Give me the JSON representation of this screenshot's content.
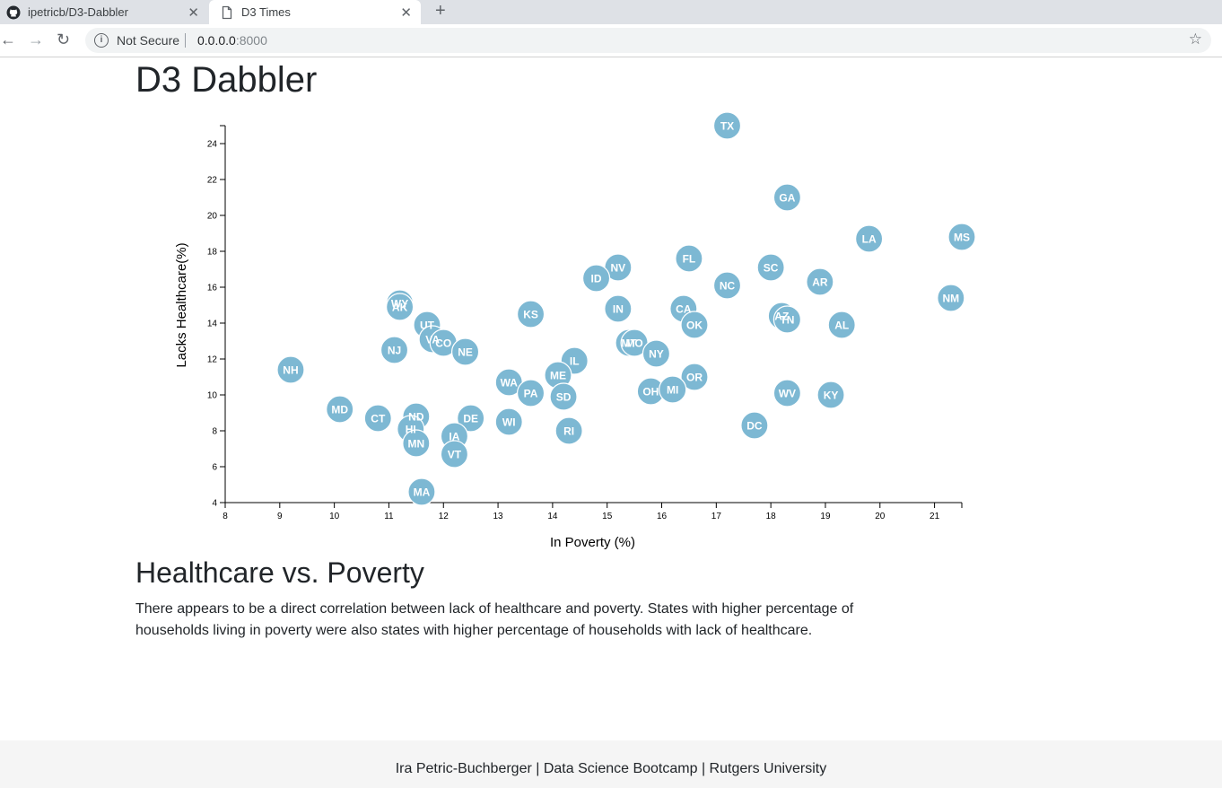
{
  "browser": {
    "tabs": [
      {
        "title": "ipetricb/D3-Dabbler",
        "icon": "github-icon"
      },
      {
        "title": "D3 Times",
        "icon": "page-icon"
      }
    ],
    "security_label": "Not Secure",
    "url_host": "0.0.0.0",
    "url_port": ":8000"
  },
  "page": {
    "title": "D3 Dabbler",
    "section_title": "Healthcare vs. Poverty",
    "description": "There appears to be a direct correlation between lack of healthcare and poverty. States with higher percentage of households living in poverty were also states with higher percentage of households with lack of healthcare.",
    "footer": "Ira Petric-Buchberger | Data Science Bootcamp | Rutgers University"
  },
  "colors": {
    "marker": "#7db8d3",
    "marker_stroke": "#ffffff"
  },
  "chart_data": {
    "type": "scatter",
    "xlabel": "In Poverty (%)",
    "ylabel": "Lacks Healthcare(%)",
    "xlim": [
      8,
      21.5
    ],
    "ylim": [
      4,
      25
    ],
    "xticks": [
      8,
      9,
      10,
      11,
      12,
      13,
      14,
      15,
      16,
      17,
      18,
      19,
      20,
      21
    ],
    "yticks": [
      4,
      6,
      8,
      10,
      12,
      14,
      16,
      18,
      20,
      22,
      24
    ],
    "grid": false,
    "points": [
      {
        "label": "TX",
        "x": 17.2,
        "y": 25.0
      },
      {
        "label": "GA",
        "x": 18.3,
        "y": 21.0
      },
      {
        "label": "LA",
        "x": 19.8,
        "y": 18.7
      },
      {
        "label": "MS",
        "x": 21.5,
        "y": 18.8
      },
      {
        "label": "FL",
        "x": 16.5,
        "y": 17.6
      },
      {
        "label": "SC",
        "x": 18.0,
        "y": 17.1
      },
      {
        "label": "NV",
        "x": 15.2,
        "y": 17.1
      },
      {
        "label": "ID",
        "x": 14.8,
        "y": 16.5
      },
      {
        "label": "AR",
        "x": 18.9,
        "y": 16.3
      },
      {
        "label": "NC",
        "x": 17.2,
        "y": 16.1
      },
      {
        "label": "NM",
        "x": 21.3,
        "y": 15.4
      },
      {
        "label": "WY",
        "x": 11.2,
        "y": 15.1
      },
      {
        "label": "AK",
        "x": 11.2,
        "y": 14.9
      },
      {
        "label": "IN",
        "x": 15.2,
        "y": 14.8
      },
      {
        "label": "CA",
        "x": 16.4,
        "y": 14.8
      },
      {
        "label": "KS",
        "x": 13.6,
        "y": 14.5
      },
      {
        "label": "AZ",
        "x": 18.2,
        "y": 14.4
      },
      {
        "label": "TN",
        "x": 18.3,
        "y": 14.2
      },
      {
        "label": "UT",
        "x": 11.7,
        "y": 13.9
      },
      {
        "label": "OK",
        "x": 16.6,
        "y": 13.9
      },
      {
        "label": "AL",
        "x": 19.3,
        "y": 13.9
      },
      {
        "label": "VA",
        "x": 11.8,
        "y": 13.1
      },
      {
        "label": "CO",
        "x": 12.0,
        "y": 12.9
      },
      {
        "label": "MT",
        "x": 15.4,
        "y": 12.9
      },
      {
        "label": "MO",
        "x": 15.5,
        "y": 12.9
      },
      {
        "label": "NJ",
        "x": 11.1,
        "y": 12.5
      },
      {
        "label": "NE",
        "x": 12.4,
        "y": 12.4
      },
      {
        "label": "NY",
        "x": 15.9,
        "y": 12.3
      },
      {
        "label": "IL",
        "x": 14.4,
        "y": 11.9
      },
      {
        "label": "NH",
        "x": 9.2,
        "y": 11.4
      },
      {
        "label": "ME",
        "x": 14.1,
        "y": 11.1
      },
      {
        "label": "WA",
        "x": 13.2,
        "y": 10.7
      },
      {
        "label": "OR",
        "x": 16.6,
        "y": 11.0
      },
      {
        "label": "PA",
        "x": 13.6,
        "y": 10.1
      },
      {
        "label": "WV",
        "x": 18.3,
        "y": 10.1
      },
      {
        "label": "KY",
        "x": 19.1,
        "y": 10.0
      },
      {
        "label": "SD",
        "x": 14.2,
        "y": 9.9
      },
      {
        "label": "OH",
        "x": 15.8,
        "y": 10.2
      },
      {
        "label": "MI",
        "x": 16.2,
        "y": 10.3
      },
      {
        "label": "MD",
        "x": 10.1,
        "y": 9.2
      },
      {
        "label": "CT",
        "x": 10.8,
        "y": 8.7
      },
      {
        "label": "ND",
        "x": 11.5,
        "y": 8.8
      },
      {
        "label": "DE",
        "x": 12.5,
        "y": 8.7
      },
      {
        "label": "WI",
        "x": 13.2,
        "y": 8.5
      },
      {
        "label": "DC",
        "x": 17.7,
        "y": 8.3
      },
      {
        "label": "HI",
        "x": 11.4,
        "y": 8.1
      },
      {
        "label": "RI",
        "x": 14.3,
        "y": 8.0
      },
      {
        "label": "IA",
        "x": 12.2,
        "y": 7.7
      },
      {
        "label": "MN",
        "x": 11.5,
        "y": 7.3
      },
      {
        "label": "VT",
        "x": 12.2,
        "y": 6.7
      },
      {
        "label": "MA",
        "x": 11.6,
        "y": 4.6
      }
    ]
  }
}
